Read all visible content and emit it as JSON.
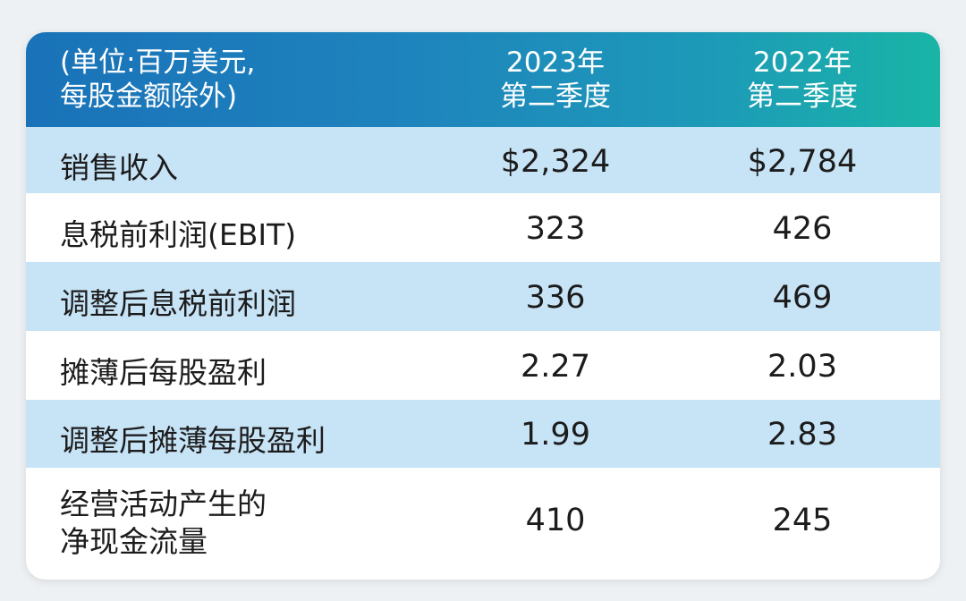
{
  "header": {
    "unit_line1": "(单位:百万美元,",
    "unit_line2": "每股金额除外)",
    "col1_line1": "2023年",
    "col1_line2": "第二季度",
    "col2_line1": "2022年",
    "col2_line2": "第二季度"
  },
  "rows": [
    {
      "label": "销售收入",
      "v2023": "$2,324",
      "v2022": "$2,784"
    },
    {
      "label": "息税前利润(EBIT)",
      "v2023": "323",
      "v2022": "426"
    },
    {
      "label": "调整后息税前利润",
      "v2023": "336",
      "v2022": "469"
    },
    {
      "label": "摊薄后每股盈利",
      "v2023": "2.27",
      "v2022": "2.03"
    },
    {
      "label": "调整后摊薄每股盈利",
      "v2023": "1.99",
      "v2022": "2.83"
    },
    {
      "label_line1": "经营活动产生的",
      "label_line2": "净现金流量",
      "v2023": "410",
      "v2022": "245"
    }
  ],
  "colors": {
    "header_start": "#1a72b8",
    "header_end": "#19b5a6",
    "row_blue": "#c7e3f6",
    "row_white": "#ffffff"
  }
}
